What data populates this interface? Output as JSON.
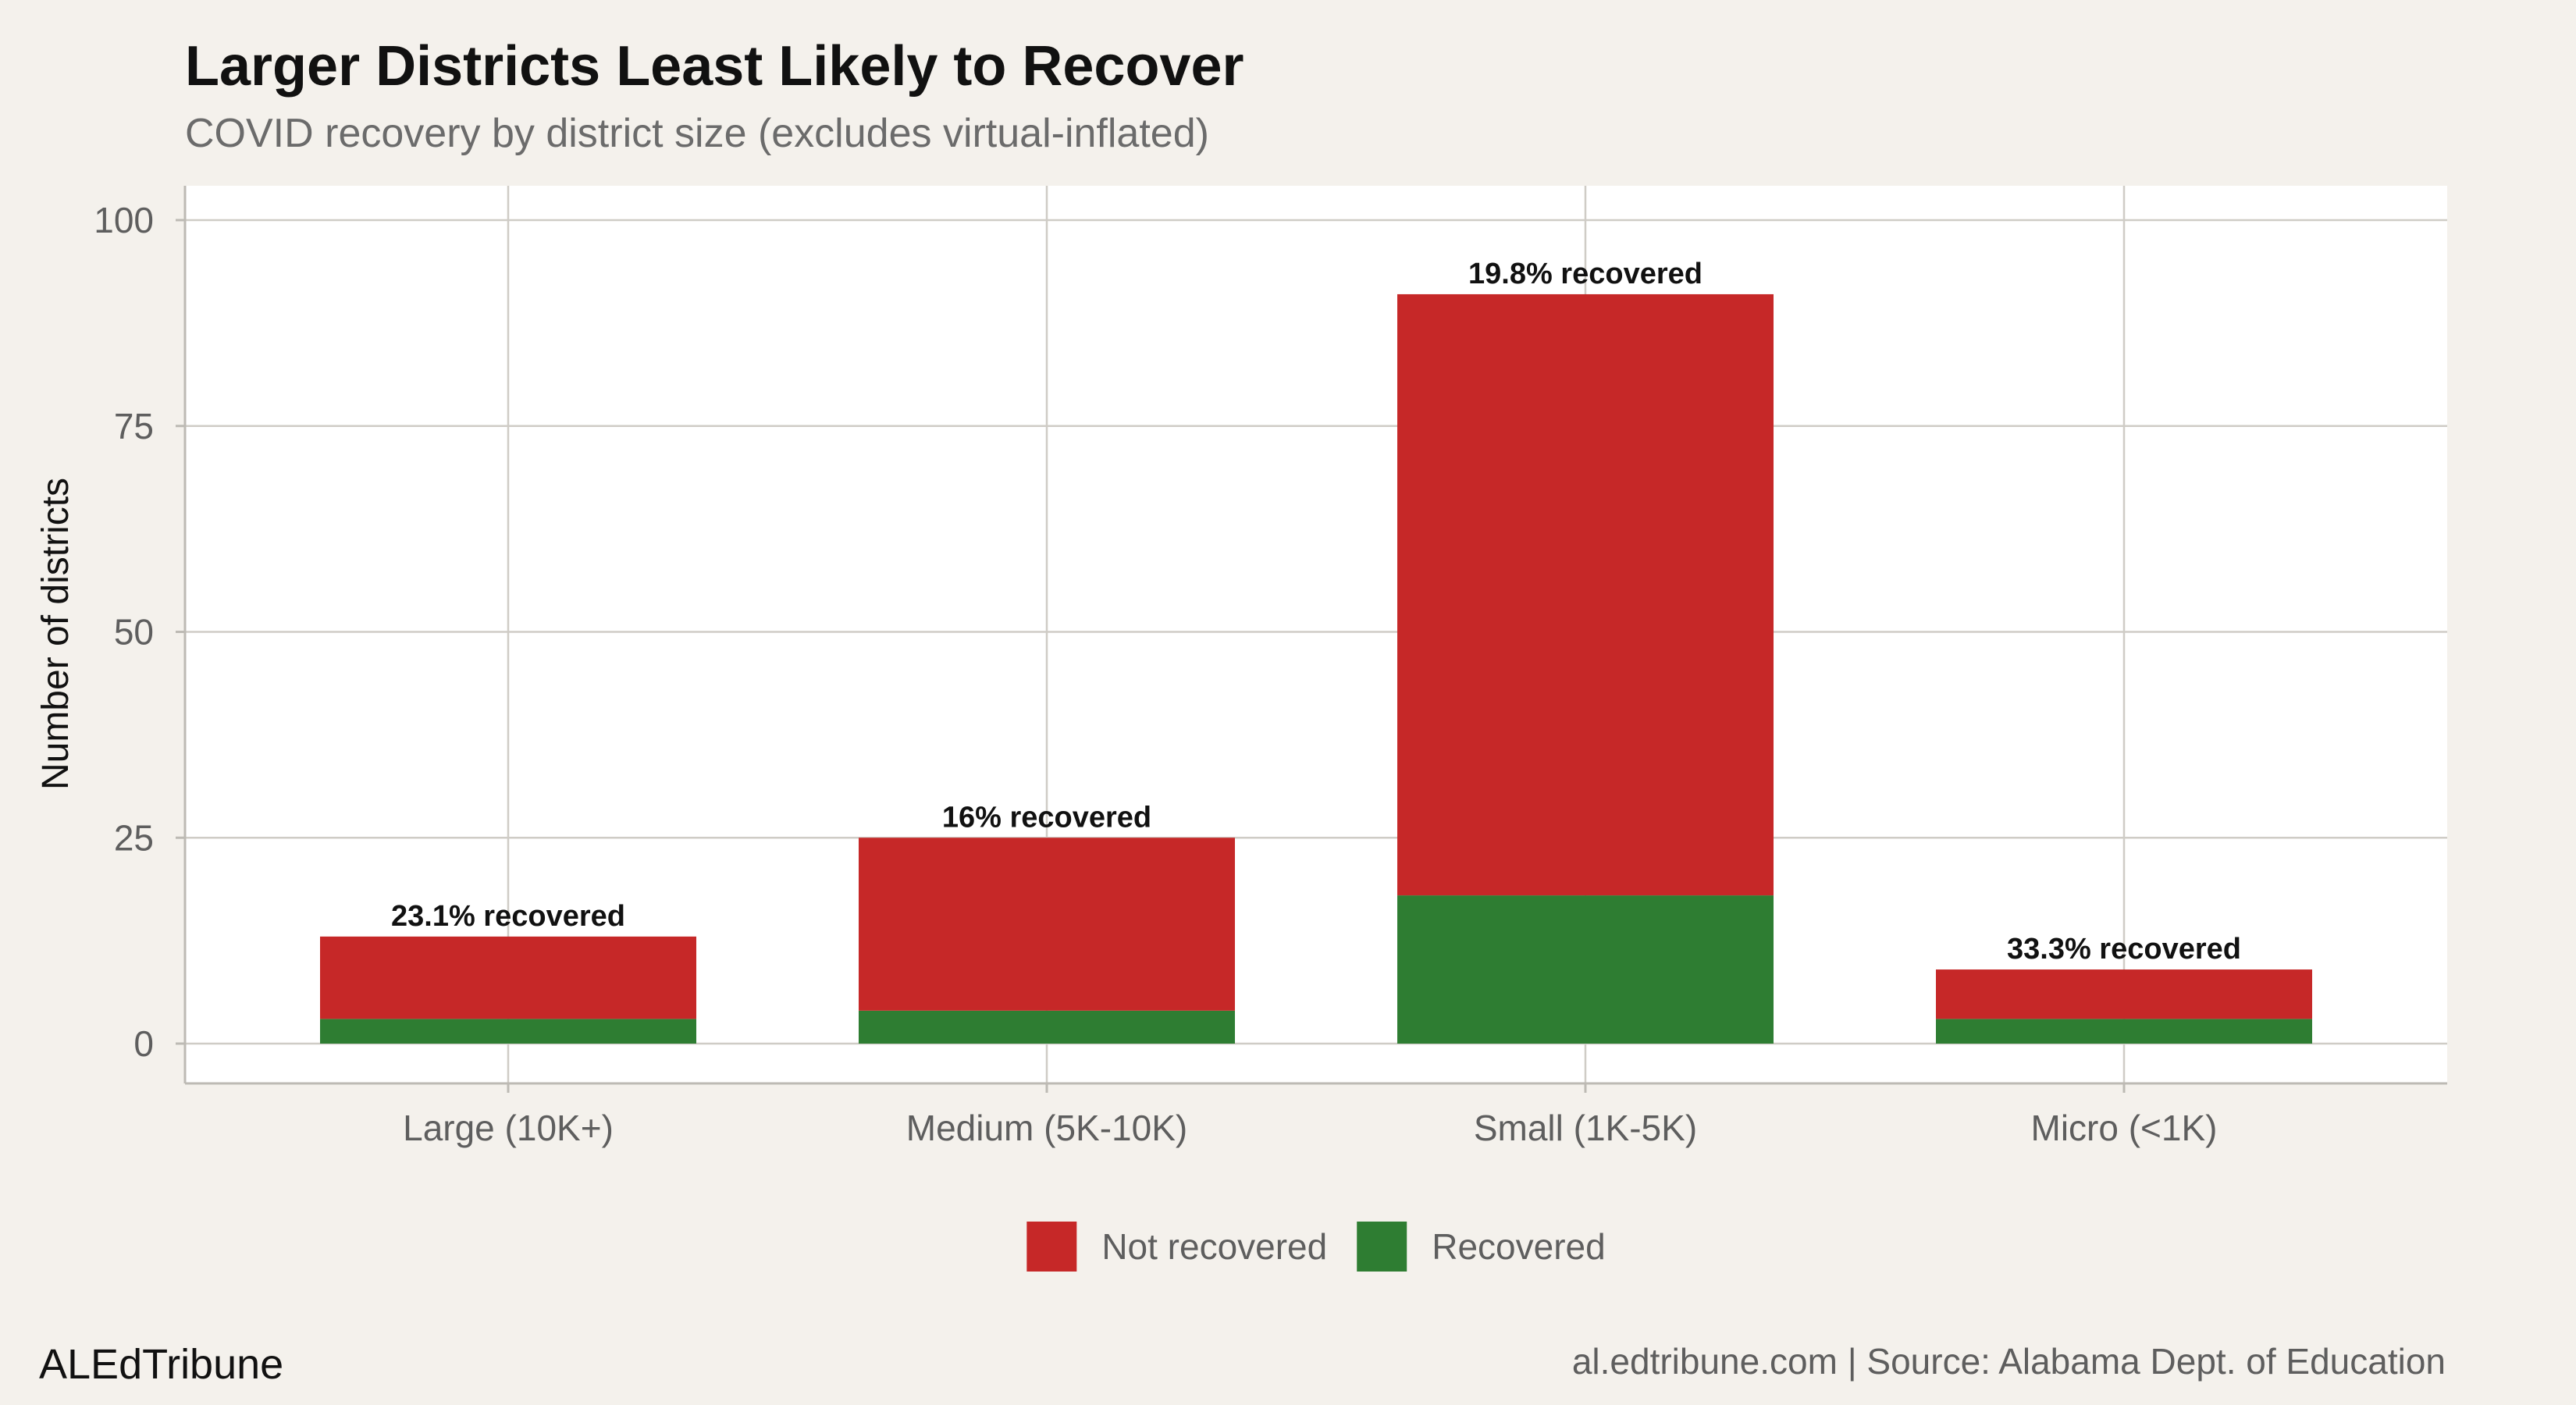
{
  "chart_data": {
    "type": "bar",
    "stacked": true,
    "title": "Larger Districts Least Likely to Recover",
    "subtitle": "COVID recovery by district size (excludes virtual-inflated)",
    "ylabel": "Number of districts",
    "xlabel": "",
    "ylim": [
      0,
      104
    ],
    "yticks": [
      0,
      25,
      50,
      75,
      100
    ],
    "categories": [
      "Large (10K+)",
      "Medium (5K-10K)",
      "Small (1K-5K)",
      "Micro (<1K)"
    ],
    "series": [
      {
        "name": "Recovered",
        "color": "#2e7d32",
        "values": [
          3,
          4,
          18,
          3
        ]
      },
      {
        "name": "Not recovered",
        "color": "#c62828",
        "values": [
          10,
          21,
          73,
          6
        ]
      }
    ],
    "bar_labels": [
      "23.1% recovered",
      "16% recovered",
      "19.8% recovered",
      "33.3% recovered"
    ],
    "legend": {
      "position": "bottom",
      "items": [
        {
          "label": "Not recovered",
          "color": "#c62828"
        },
        {
          "label": "Recovered",
          "color": "#2e7d32"
        }
      ]
    },
    "grid": true
  },
  "footer": {
    "brand": "ALEdTribune",
    "source": "al.edtribune.com | Source: Alabama Dept. of Education"
  }
}
